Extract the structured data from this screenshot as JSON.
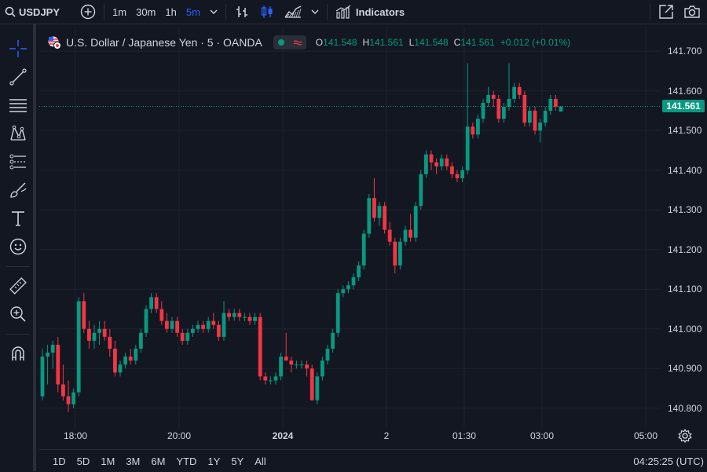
{
  "toolbar": {
    "symbol": "USDJPY",
    "intervals": [
      "1m",
      "30m",
      "1h",
      "5m"
    ],
    "active_interval": "5m",
    "indicators_label": "Indicators"
  },
  "legend": {
    "title": "U.S. Dollar / Japanese Yen · 5 · OANDA",
    "open_label": "O",
    "open": "141.548",
    "high_label": "H",
    "high": "141.561",
    "low_label": "L",
    "low": "141.548",
    "close_label": "C",
    "close": "141.561",
    "change": "+0.012 (+0.01%)"
  },
  "current_price": "141.561",
  "price_axis": [
    "141.700",
    "141.600",
    "141.500",
    "141.400",
    "141.300",
    "141.200",
    "141.100",
    "141.000",
    "140.900",
    "140.800"
  ],
  "time_axis": [
    {
      "label": "18:00",
      "bold": false
    },
    {
      "label": "20:00",
      "bold": false
    },
    {
      "label": "2024",
      "bold": true
    },
    {
      "label": "2",
      "bold": false
    },
    {
      "label": "01:30",
      "bold": false
    },
    {
      "label": "03:00",
      "bold": false
    },
    {
      "label": "05:00",
      "bold": false
    }
  ],
  "ranges": [
    "1D",
    "5D",
    "1M",
    "3M",
    "6M",
    "YTD",
    "1Y",
    "5Y",
    "All"
  ],
  "clock": "04:25:25 (UTC)",
  "colors": {
    "up": "#089981",
    "down": "#f23645",
    "background": "#131722",
    "grid": "#1e222d",
    "accent": "#2962ff"
  },
  "chart_data": {
    "type": "candlestick",
    "ylim": [
      140.75,
      141.76
    ],
    "candles": [
      [
        140.83,
        140.95,
        140.82,
        140.93
      ],
      [
        140.93,
        140.96,
        140.86,
        140.94
      ],
      [
        140.94,
        140.97,
        140.9,
        140.96
      ],
      [
        140.96,
        140.98,
        140.84,
        140.86
      ],
      [
        140.86,
        140.91,
        140.82,
        140.83
      ],
      [
        140.83,
        140.87,
        140.79,
        140.81
      ],
      [
        140.81,
        140.85,
        140.8,
        140.84
      ],
      [
        140.84,
        141.08,
        140.83,
        141.07
      ],
      [
        141.07,
        141.09,
        140.99,
        141.0
      ],
      [
        141.0,
        141.02,
        140.95,
        140.97
      ],
      [
        140.97,
        141.01,
        140.95,
        140.99
      ],
      [
        140.99,
        141.02,
        140.96,
        141.0
      ],
      [
        141.0,
        141.02,
        140.97,
        140.98
      ],
      [
        140.98,
        141.0,
        140.93,
        140.95
      ],
      [
        140.95,
        140.97,
        140.88,
        140.89
      ],
      [
        140.89,
        140.92,
        140.88,
        140.91
      ],
      [
        140.91,
        140.94,
        140.9,
        140.93
      ],
      [
        140.93,
        140.95,
        140.91,
        140.92
      ],
      [
        140.92,
        140.96,
        140.91,
        140.95
      ],
      [
        140.95,
        141.0,
        140.94,
        140.99
      ],
      [
        140.99,
        141.06,
        140.98,
        141.05
      ],
      [
        141.05,
        141.09,
        141.04,
        141.08
      ],
      [
        141.08,
        141.09,
        141.04,
        141.05
      ],
      [
        141.05,
        141.07,
        141.01,
        141.02
      ],
      [
        141.02,
        141.04,
        140.99,
        141.0
      ],
      [
        141.0,
        141.03,
        140.99,
        141.02
      ],
      [
        141.02,
        141.03,
        140.98,
        140.99
      ],
      [
        140.99,
        141.0,
        140.96,
        140.97
      ],
      [
        140.97,
        141.0,
        140.96,
        140.99
      ],
      [
        140.99,
        141.01,
        140.98,
        141.0
      ],
      [
        141.0,
        141.02,
        140.99,
        141.01
      ],
      [
        141.01,
        141.02,
        140.99,
        141.0
      ],
      [
        141.0,
        141.03,
        140.99,
        141.02
      ],
      [
        141.02,
        141.04,
        141.0,
        141.01
      ],
      [
        141.01,
        141.02,
        140.97,
        140.98
      ],
      [
        140.98,
        141.07,
        140.97,
        141.04
      ],
      [
        141.04,
        141.05,
        141.02,
        141.03
      ],
      [
        141.03,
        141.05,
        141.02,
        141.04
      ],
      [
        141.04,
        141.05,
        141.02,
        141.03
      ],
      [
        141.03,
        141.04,
        141.02,
        141.03
      ],
      [
        141.03,
        141.04,
        141.01,
        141.02
      ],
      [
        141.02,
        141.04,
        141.01,
        141.03
      ],
      [
        141.03,
        141.04,
        140.87,
        140.88
      ],
      [
        140.88,
        140.89,
        140.86,
        140.87
      ],
      [
        140.87,
        140.88,
        140.86,
        140.87
      ],
      [
        140.87,
        140.89,
        140.86,
        140.88
      ],
      [
        140.88,
        140.94,
        140.87,
        140.93
      ],
      [
        140.93,
        140.99,
        140.92,
        140.92
      ],
      [
        140.92,
        140.93,
        140.89,
        140.91
      ],
      [
        140.91,
        140.92,
        140.9,
        140.91
      ],
      [
        140.91,
        140.92,
        140.9,
        140.91
      ],
      [
        140.91,
        140.92,
        140.88,
        140.9
      ],
      [
        140.9,
        140.91,
        140.82,
        140.82
      ],
      [
        140.82,
        140.89,
        140.81,
        140.88
      ],
      [
        140.88,
        140.93,
        140.87,
        140.92
      ],
      [
        140.92,
        140.96,
        140.91,
        140.95
      ],
      [
        140.95,
        141.0,
        140.94,
        140.99
      ],
      [
        140.99,
        141.1,
        140.98,
        141.09
      ],
      [
        141.09,
        141.11,
        141.08,
        141.1
      ],
      [
        141.1,
        141.12,
        141.09,
        141.11
      ],
      [
        141.11,
        141.14,
        141.1,
        141.13
      ],
      [
        141.13,
        141.17,
        141.12,
        141.16
      ],
      [
        141.16,
        141.25,
        141.15,
        141.24
      ],
      [
        141.24,
        141.34,
        141.23,
        141.33
      ],
      [
        141.33,
        141.38,
        141.27,
        141.28
      ],
      [
        141.28,
        141.32,
        141.26,
        141.31
      ],
      [
        141.31,
        141.32,
        141.24,
        141.25
      ],
      [
        141.25,
        141.27,
        141.21,
        141.22
      ],
      [
        141.22,
        141.23,
        141.14,
        141.16
      ],
      [
        141.16,
        141.23,
        141.15,
        141.22
      ],
      [
        141.22,
        141.26,
        141.21,
        141.25
      ],
      [
        141.25,
        141.29,
        141.22,
        141.23
      ],
      [
        141.23,
        141.32,
        141.22,
        141.31
      ],
      [
        141.31,
        141.4,
        141.3,
        141.39
      ],
      [
        141.39,
        141.45,
        141.38,
        141.44
      ],
      [
        141.44,
        141.45,
        141.4,
        141.42
      ],
      [
        141.42,
        141.43,
        141.39,
        141.41
      ],
      [
        141.41,
        141.44,
        141.4,
        141.43
      ],
      [
        141.43,
        141.44,
        141.4,
        141.41
      ],
      [
        141.41,
        141.42,
        141.38,
        141.39
      ],
      [
        141.39,
        141.4,
        141.37,
        141.38
      ],
      [
        141.38,
        141.41,
        141.37,
        141.4
      ],
      [
        141.4,
        141.67,
        141.39,
        141.51
      ],
      [
        141.51,
        141.52,
        141.48,
        141.49
      ],
      [
        141.49,
        141.54,
        141.48,
        141.53
      ],
      [
        141.53,
        141.58,
        141.52,
        141.57
      ],
      [
        141.57,
        141.61,
        141.56,
        141.59
      ],
      [
        141.59,
        141.6,
        141.56,
        141.58
      ],
      [
        141.58,
        141.59,
        141.52,
        141.53
      ],
      [
        141.53,
        141.57,
        141.52,
        141.56
      ],
      [
        141.56,
        141.67,
        141.55,
        141.58
      ],
      [
        141.58,
        141.62,
        141.57,
        141.61
      ],
      [
        141.61,
        141.62,
        141.58,
        141.59
      ],
      [
        141.59,
        141.6,
        141.51,
        141.52
      ],
      [
        141.52,
        141.56,
        141.51,
        141.55
      ],
      [
        141.55,
        141.56,
        141.49,
        141.5
      ],
      [
        141.5,
        141.53,
        141.47,
        141.52
      ],
      [
        141.52,
        141.56,
        141.51,
        141.55
      ],
      [
        141.55,
        141.59,
        141.54,
        141.58
      ],
      [
        141.58,
        141.59,
        141.55,
        141.56
      ],
      [
        141.548,
        141.561,
        141.548,
        141.561
      ]
    ]
  }
}
